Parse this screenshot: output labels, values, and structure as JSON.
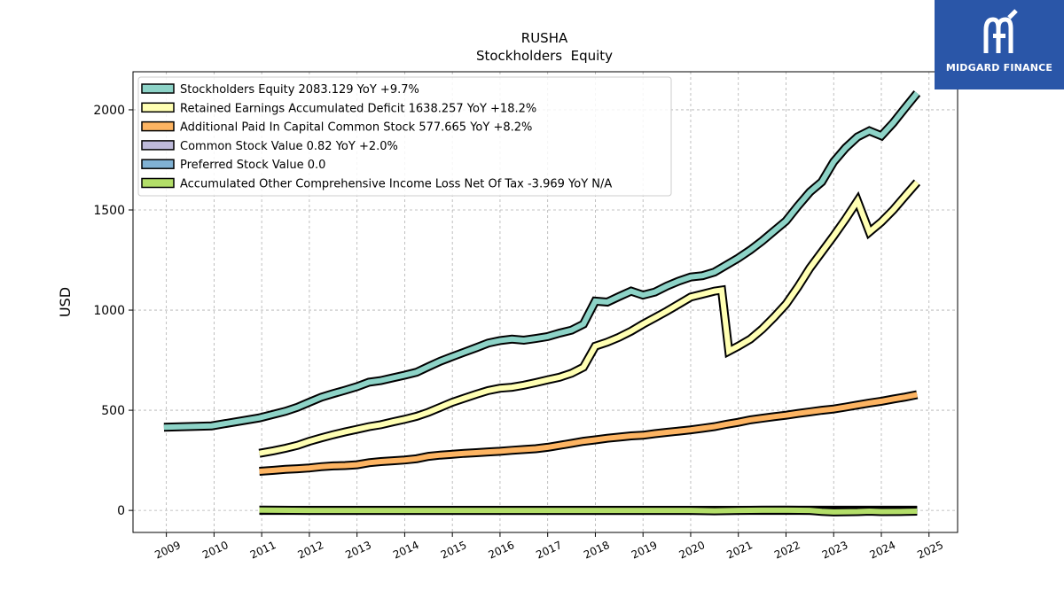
{
  "brand": {
    "name": "MIDGARD FINANCE",
    "bg_color": "#2a56a8"
  },
  "chart_data": {
    "type": "line",
    "title": "RUSHA",
    "subtitle": "Stockholders  Equity",
    "ylabel": "USD",
    "xlabel": "",
    "xlim": [
      2008.3,
      2025.6
    ],
    "ylim": [
      -110,
      2190
    ],
    "x_ticks": [
      "2009",
      "2010",
      "2011",
      "2012",
      "2013",
      "2014",
      "2015",
      "2016",
      "2017",
      "2018",
      "2019",
      "2020",
      "2021",
      "2022",
      "2023",
      "2024",
      "2025"
    ],
    "y_ticks": [
      0,
      500,
      1000,
      1500,
      2000
    ],
    "grid": true,
    "legend_position": "top-left",
    "series": [
      {
        "name": "Stockholders Equity",
        "legend_label": "Stockholders Equity  2083.129 YoY +9.7%",
        "color": "#8dd3c7",
        "points": [
          [
            2008.95,
            415
          ],
          [
            2009.95,
            422
          ],
          [
            2010.95,
            462
          ],
          [
            2011.25,
            480
          ],
          [
            2011.5,
            495
          ],
          [
            2011.75,
            515
          ],
          [
            2012.0,
            540
          ],
          [
            2012.25,
            565
          ],
          [
            2012.5,
            583
          ],
          [
            2012.75,
            600
          ],
          [
            2013.0,
            618
          ],
          [
            2013.25,
            640
          ],
          [
            2013.5,
            648
          ],
          [
            2013.75,
            662
          ],
          [
            2014.0,
            675
          ],
          [
            2014.25,
            690
          ],
          [
            2014.5,
            718
          ],
          [
            2014.75,
            745
          ],
          [
            2015.0,
            768
          ],
          [
            2015.25,
            790
          ],
          [
            2015.5,
            812
          ],
          [
            2015.75,
            835
          ],
          [
            2016.0,
            848
          ],
          [
            2016.25,
            855
          ],
          [
            2016.5,
            850
          ],
          [
            2016.75,
            858
          ],
          [
            2017.0,
            868
          ],
          [
            2017.25,
            885
          ],
          [
            2017.5,
            900
          ],
          [
            2017.75,
            930
          ],
          [
            2018.0,
            1045
          ],
          [
            2018.25,
            1040
          ],
          [
            2018.5,
            1068
          ],
          [
            2018.75,
            1095
          ],
          [
            2019.0,
            1075
          ],
          [
            2019.25,
            1090
          ],
          [
            2019.5,
            1120
          ],
          [
            2019.75,
            1145
          ],
          [
            2020.0,
            1165
          ],
          [
            2020.25,
            1172
          ],
          [
            2020.5,
            1190
          ],
          [
            2020.75,
            1225
          ],
          [
            2021.0,
            1260
          ],
          [
            2021.25,
            1300
          ],
          [
            2021.5,
            1345
          ],
          [
            2021.75,
            1395
          ],
          [
            2022.0,
            1445
          ],
          [
            2022.25,
            1520
          ],
          [
            2022.5,
            1590
          ],
          [
            2022.75,
            1640
          ],
          [
            2023.0,
            1740
          ],
          [
            2023.25,
            1810
          ],
          [
            2023.5,
            1865
          ],
          [
            2023.75,
            1895
          ],
          [
            2024.0,
            1870
          ],
          [
            2024.25,
            1935
          ],
          [
            2024.5,
            2010
          ],
          [
            2024.75,
            2083
          ]
        ]
      },
      {
        "name": "Retained Earnings Accumulated Deficit",
        "legend_label": "Retained Earnings Accumulated Deficit  1638.257 YoY +18.2%",
        "color": "#ffffb3",
        "points": [
          [
            2010.95,
            285
          ],
          [
            2011.25,
            298
          ],
          [
            2011.5,
            310
          ],
          [
            2011.75,
            325
          ],
          [
            2012.0,
            345
          ],
          [
            2012.25,
            362
          ],
          [
            2012.5,
            378
          ],
          [
            2012.75,
            392
          ],
          [
            2013.0,
            405
          ],
          [
            2013.25,
            418
          ],
          [
            2013.5,
            428
          ],
          [
            2013.75,
            442
          ],
          [
            2014.0,
            455
          ],
          [
            2014.25,
            470
          ],
          [
            2014.5,
            490
          ],
          [
            2014.75,
            515
          ],
          [
            2015.0,
            540
          ],
          [
            2015.25,
            560
          ],
          [
            2015.5,
            580
          ],
          [
            2015.75,
            598
          ],
          [
            2016.0,
            610
          ],
          [
            2016.25,
            615
          ],
          [
            2016.5,
            625
          ],
          [
            2016.75,
            638
          ],
          [
            2017.0,
            652
          ],
          [
            2017.25,
            665
          ],
          [
            2017.5,
            685
          ],
          [
            2017.75,
            715
          ],
          [
            2018.0,
            820
          ],
          [
            2018.25,
            840
          ],
          [
            2018.5,
            865
          ],
          [
            2018.75,
            895
          ],
          [
            2019.0,
            930
          ],
          [
            2019.25,
            962
          ],
          [
            2019.5,
            995
          ],
          [
            2019.75,
            1030
          ],
          [
            2020.0,
            1065
          ],
          [
            2020.25,
            1080
          ],
          [
            2020.5,
            1095
          ],
          [
            2020.65,
            1100
          ],
          [
            2020.8,
            795
          ],
          [
            2021.0,
            820
          ],
          [
            2021.25,
            855
          ],
          [
            2021.5,
            905
          ],
          [
            2021.75,
            965
          ],
          [
            2022.0,
            1030
          ],
          [
            2022.25,
            1115
          ],
          [
            2022.5,
            1210
          ],
          [
            2022.75,
            1290
          ],
          [
            2023.0,
            1370
          ],
          [
            2023.25,
            1455
          ],
          [
            2023.5,
            1545
          ],
          [
            2023.75,
            1390
          ],
          [
            2024.0,
            1440
          ],
          [
            2024.25,
            1500
          ],
          [
            2024.5,
            1570
          ],
          [
            2024.75,
            1638
          ]
        ]
      },
      {
        "name": "Additional Paid In Capital Common Stock",
        "legend_label": "Additional Paid In Capital Common Stock  577.665 YoY +8.2%",
        "color": "#fdb462",
        "points": [
          [
            2010.95,
            195
          ],
          [
            2011.25,
            200
          ],
          [
            2011.5,
            205
          ],
          [
            2011.75,
            208
          ],
          [
            2012.0,
            212
          ],
          [
            2012.25,
            218
          ],
          [
            2012.5,
            222
          ],
          [
            2012.75,
            224
          ],
          [
            2013.0,
            228
          ],
          [
            2013.25,
            238
          ],
          [
            2013.5,
            244
          ],
          [
            2013.75,
            248
          ],
          [
            2014.0,
            252
          ],
          [
            2014.25,
            258
          ],
          [
            2014.5,
            270
          ],
          [
            2014.75,
            276
          ],
          [
            2015.0,
            280
          ],
          [
            2015.25,
            285
          ],
          [
            2015.5,
            288
          ],
          [
            2015.75,
            292
          ],
          [
            2016.0,
            295
          ],
          [
            2016.25,
            300
          ],
          [
            2016.5,
            304
          ],
          [
            2016.75,
            308
          ],
          [
            2017.0,
            315
          ],
          [
            2017.25,
            325
          ],
          [
            2017.5,
            335
          ],
          [
            2017.75,
            345
          ],
          [
            2018.0,
            352
          ],
          [
            2018.25,
            360
          ],
          [
            2018.5,
            366
          ],
          [
            2018.75,
            372
          ],
          [
            2019.0,
            375
          ],
          [
            2019.25,
            383
          ],
          [
            2019.5,
            390
          ],
          [
            2019.75,
            396
          ],
          [
            2020.0,
            402
          ],
          [
            2020.25,
            410
          ],
          [
            2020.5,
            418
          ],
          [
            2020.75,
            430
          ],
          [
            2021.0,
            440
          ],
          [
            2021.25,
            452
          ],
          [
            2021.5,
            460
          ],
          [
            2021.75,
            468
          ],
          [
            2022.0,
            475
          ],
          [
            2022.25,
            484
          ],
          [
            2022.5,
            492
          ],
          [
            2022.75,
            500
          ],
          [
            2023.0,
            506
          ],
          [
            2023.25,
            516
          ],
          [
            2023.5,
            526
          ],
          [
            2023.75,
            536
          ],
          [
            2024.0,
            545
          ],
          [
            2024.25,
            556
          ],
          [
            2024.5,
            566
          ],
          [
            2024.75,
            578
          ]
        ]
      },
      {
        "name": "Common Stock Value",
        "legend_label": "Common Stock Value  0.82 YoY +2.0%",
        "color": "#bebada",
        "points": [
          [
            2010.95,
            0.6
          ],
          [
            2012.0,
            0.65
          ],
          [
            2013.0,
            0.68
          ],
          [
            2014.0,
            0.7
          ],
          [
            2015.0,
            0.72
          ],
          [
            2016.0,
            0.74
          ],
          [
            2017.0,
            0.75
          ],
          [
            2018.0,
            0.76
          ],
          [
            2019.0,
            0.77
          ],
          [
            2020.0,
            0.78
          ],
          [
            2021.0,
            0.79
          ],
          [
            2022.0,
            0.8
          ],
          [
            2023.0,
            0.8
          ],
          [
            2024.0,
            0.81
          ],
          [
            2024.75,
            0.82
          ]
        ]
      },
      {
        "name": "Preferred Stock Value",
        "legend_label": "Preferred Stock Value  0.0",
        "color": "#80b1d3",
        "points": [
          [
            2010.95,
            0
          ],
          [
            2024.75,
            0
          ]
        ]
      },
      {
        "name": "Accumulated Other Comprehensive Income Loss Net Of Tax",
        "legend_label": "Accumulated Other Comprehensive Income Loss Net Of Tax  -3.969 YoY N/A",
        "color": "#b3de69",
        "points": [
          [
            2010.95,
            2
          ],
          [
            2012.0,
            0
          ],
          [
            2013.0,
            0
          ],
          [
            2014.0,
            0
          ],
          [
            2015.0,
            0
          ],
          [
            2016.0,
            0
          ],
          [
            2017.0,
            0
          ],
          [
            2018.0,
            0
          ],
          [
            2019.0,
            0
          ],
          [
            2020.0,
            0
          ],
          [
            2020.5,
            -2
          ],
          [
            2021.0,
            0
          ],
          [
            2021.5,
            1
          ],
          [
            2022.0,
            1
          ],
          [
            2022.5,
            0
          ],
          [
            2022.75,
            -5
          ],
          [
            2023.0,
            -8
          ],
          [
            2023.5,
            -6
          ],
          [
            2023.75,
            -4
          ],
          [
            2024.0,
            -6
          ],
          [
            2024.5,
            -5
          ],
          [
            2024.75,
            -4
          ]
        ]
      }
    ]
  }
}
